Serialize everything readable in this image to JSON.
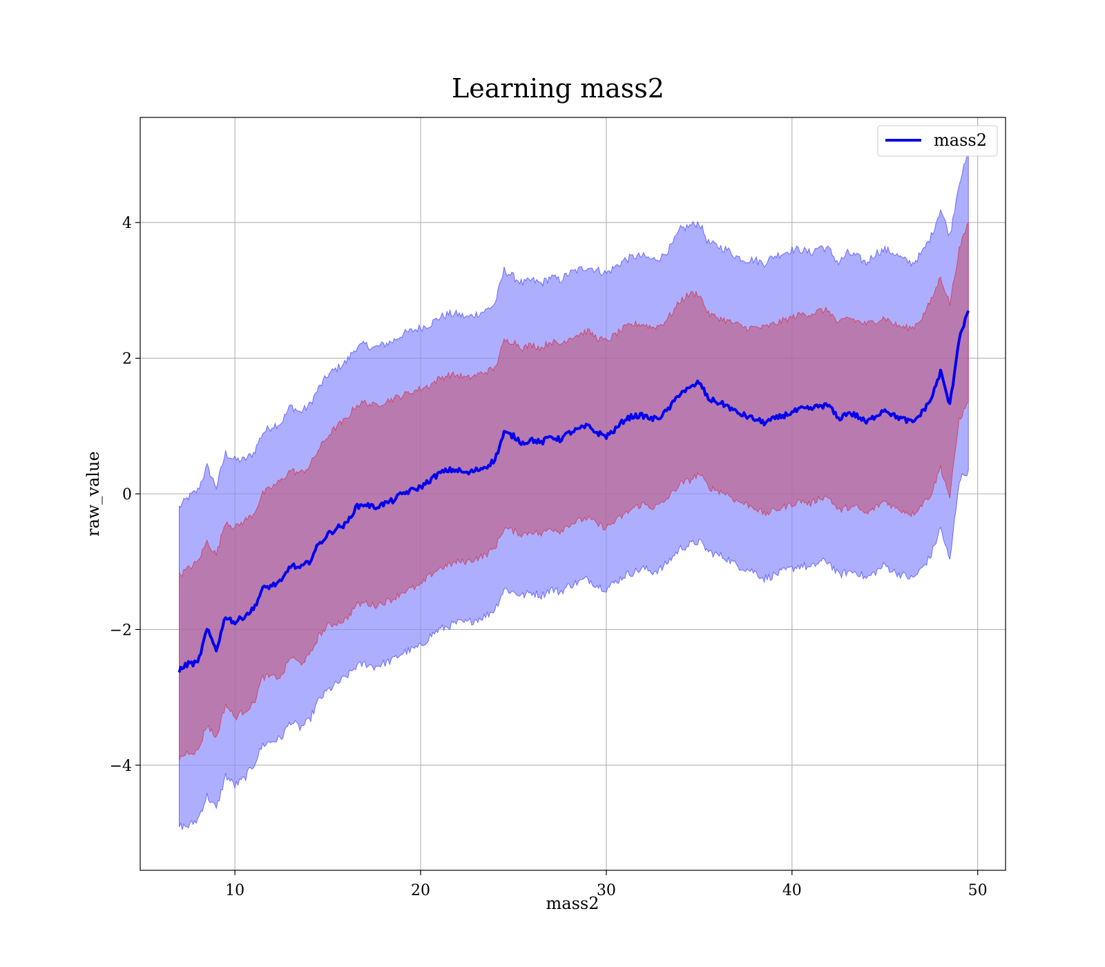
{
  "chart_data": {
    "type": "line",
    "title": "Learning mass2",
    "xlabel": "mass2",
    "ylabel": "raw_value",
    "xlim": [
      4.9,
      51.5
    ],
    "ylim": [
      -5.55,
      5.55
    ],
    "xticks": [
      10,
      20,
      30,
      40,
      50
    ],
    "yticks": [
      -4,
      -2,
      0,
      2,
      4
    ],
    "xtick_labels": [
      "10",
      "20",
      "30",
      "40",
      "50"
    ],
    "ytick_labels": [
      "−4",
      "−2",
      "0",
      "2",
      "4"
    ],
    "grid": true,
    "legend": {
      "placement": "top-right",
      "entries": [
        "mass2"
      ]
    },
    "colors": {
      "line": "#0000ee",
      "band_outer": "#8c8cff",
      "band_inner": "#c0587a"
    },
    "series": [
      {
        "name": "mass2",
        "role": "mean",
        "x": [
          7.0,
          7.5,
          8.0,
          8.5,
          9.0,
          9.5,
          10.0,
          10.5,
          11.0,
          11.5,
          12.0,
          12.5,
          13.0,
          13.5,
          14.0,
          14.5,
          15.0,
          15.5,
          16.0,
          16.5,
          17.0,
          17.5,
          18.0,
          18.5,
          19.0,
          19.5,
          20.0,
          20.5,
          21.0,
          21.5,
          22.0,
          22.5,
          23.0,
          23.5,
          24.0,
          24.5,
          25.0,
          25.5,
          26.0,
          26.5,
          27.0,
          27.5,
          28.0,
          28.5,
          29.0,
          29.5,
          30.0,
          30.5,
          31.0,
          31.5,
          32.0,
          32.5,
          33.0,
          33.5,
          34.0,
          34.5,
          35.0,
          35.5,
          36.0,
          36.5,
          37.0,
          37.5,
          38.0,
          38.5,
          39.0,
          39.5,
          40.0,
          40.5,
          41.0,
          41.5,
          42.0,
          42.5,
          43.0,
          43.5,
          44.0,
          44.5,
          45.0,
          45.5,
          46.0,
          46.5,
          47.0,
          47.5,
          48.0,
          48.5,
          49.0,
          49.5
        ],
        "y": [
          -2.6,
          -2.5,
          -2.5,
          -2.0,
          -2.3,
          -1.8,
          -1.9,
          -1.8,
          -1.7,
          -1.4,
          -1.35,
          -1.3,
          -1.05,
          -1.1,
          -1.0,
          -0.75,
          -0.6,
          -0.5,
          -0.45,
          -0.2,
          -0.15,
          -0.2,
          -0.15,
          -0.1,
          0.0,
          0.05,
          0.1,
          0.2,
          0.3,
          0.35,
          0.35,
          0.3,
          0.35,
          0.4,
          0.5,
          0.9,
          0.85,
          0.75,
          0.8,
          0.75,
          0.85,
          0.8,
          0.9,
          0.95,
          1.0,
          0.9,
          0.85,
          0.95,
          1.1,
          1.15,
          1.15,
          1.1,
          1.15,
          1.3,
          1.5,
          1.55,
          1.65,
          1.4,
          1.35,
          1.3,
          1.2,
          1.15,
          1.1,
          1.05,
          1.1,
          1.15,
          1.2,
          1.25,
          1.25,
          1.3,
          1.3,
          1.1,
          1.2,
          1.15,
          1.05,
          1.15,
          1.25,
          1.15,
          1.1,
          1.05,
          1.2,
          1.4,
          1.8,
          1.3,
          2.3,
          2.7
        ]
      },
      {
        "role": "inner_band",
        "x": [
          7.0,
          7.5,
          8.0,
          8.5,
          9.0,
          9.5,
          10.0,
          10.5,
          11.0,
          11.5,
          12.0,
          12.5,
          13.0,
          13.5,
          14.0,
          14.5,
          15.0,
          15.5,
          16.0,
          16.5,
          17.0,
          17.5,
          18.0,
          18.5,
          19.0,
          19.5,
          20.0,
          20.5,
          21.0,
          21.5,
          22.0,
          22.5,
          23.0,
          23.5,
          24.0,
          24.5,
          25.0,
          25.5,
          26.0,
          26.5,
          27.0,
          27.5,
          28.0,
          28.5,
          29.0,
          29.5,
          30.0,
          30.5,
          31.0,
          31.5,
          32.0,
          32.5,
          33.0,
          33.5,
          34.0,
          34.5,
          35.0,
          35.5,
          36.0,
          36.5,
          37.0,
          37.5,
          38.0,
          38.5,
          39.0,
          39.5,
          40.0,
          40.5,
          41.0,
          41.5,
          42.0,
          42.5,
          43.0,
          43.5,
          44.0,
          44.5,
          45.0,
          45.5,
          46.0,
          46.5,
          47.0,
          47.5,
          48.0,
          48.5,
          49.0,
          49.5
        ],
        "upper": [
          -1.2,
          -1.1,
          -1.0,
          -0.7,
          -0.9,
          -0.4,
          -0.5,
          -0.4,
          -0.3,
          0.0,
          0.1,
          0.2,
          0.35,
          0.3,
          0.4,
          0.65,
          0.85,
          1.0,
          1.1,
          1.3,
          1.35,
          1.3,
          1.35,
          1.4,
          1.45,
          1.5,
          1.55,
          1.6,
          1.7,
          1.75,
          1.75,
          1.7,
          1.75,
          1.8,
          1.85,
          2.25,
          2.25,
          2.15,
          2.2,
          2.15,
          2.25,
          2.2,
          2.3,
          2.35,
          2.4,
          2.3,
          2.25,
          2.35,
          2.45,
          2.5,
          2.5,
          2.45,
          2.5,
          2.65,
          2.85,
          2.95,
          2.95,
          2.65,
          2.6,
          2.55,
          2.5,
          2.45,
          2.45,
          2.45,
          2.5,
          2.55,
          2.6,
          2.65,
          2.65,
          2.7,
          2.7,
          2.5,
          2.6,
          2.55,
          2.5,
          2.55,
          2.6,
          2.5,
          2.45,
          2.45,
          2.6,
          2.85,
          3.2,
          2.8,
          3.6,
          4.0
        ],
        "lower": [
          -3.9,
          -3.8,
          -3.8,
          -3.4,
          -3.6,
          -3.1,
          -3.3,
          -3.2,
          -3.1,
          -2.7,
          -2.7,
          -2.7,
          -2.4,
          -2.5,
          -2.4,
          -2.1,
          -1.95,
          -1.9,
          -1.85,
          -1.65,
          -1.6,
          -1.65,
          -1.6,
          -1.55,
          -1.45,
          -1.4,
          -1.35,
          -1.2,
          -1.1,
          -1.05,
          -1.0,
          -1.0,
          -0.95,
          -0.9,
          -0.8,
          -0.5,
          -0.55,
          -0.6,
          -0.55,
          -0.6,
          -0.5,
          -0.55,
          -0.45,
          -0.4,
          -0.35,
          -0.45,
          -0.5,
          -0.4,
          -0.3,
          -0.2,
          -0.15,
          -0.2,
          -0.15,
          0.0,
          0.15,
          0.2,
          0.3,
          0.1,
          0.05,
          0.0,
          -0.1,
          -0.15,
          -0.2,
          -0.3,
          -0.25,
          -0.2,
          -0.15,
          -0.1,
          -0.15,
          -0.05,
          -0.05,
          -0.25,
          -0.2,
          -0.2,
          -0.3,
          -0.2,
          -0.1,
          -0.2,
          -0.25,
          -0.3,
          -0.15,
          0.0,
          0.4,
          -0.05,
          1.1,
          1.35
        ]
      },
      {
        "role": "outer_band",
        "x": [
          7.0,
          7.5,
          8.0,
          8.5,
          9.0,
          9.5,
          10.0,
          10.5,
          11.0,
          11.5,
          12.0,
          12.5,
          13.0,
          13.5,
          14.0,
          14.5,
          15.0,
          15.5,
          16.0,
          16.5,
          17.0,
          17.5,
          18.0,
          18.5,
          19.0,
          19.5,
          20.0,
          20.5,
          21.0,
          21.5,
          22.0,
          22.5,
          23.0,
          23.5,
          24.0,
          24.5,
          25.0,
          25.5,
          26.0,
          26.5,
          27.0,
          27.5,
          28.0,
          28.5,
          29.0,
          29.5,
          30.0,
          30.5,
          31.0,
          31.5,
          32.0,
          32.5,
          33.0,
          33.5,
          34.0,
          34.5,
          35.0,
          35.5,
          36.0,
          36.5,
          37.0,
          37.5,
          38.0,
          38.5,
          39.0,
          39.5,
          40.0,
          40.5,
          41.0,
          41.5,
          42.0,
          42.5,
          43.0,
          43.5,
          44.0,
          44.5,
          45.0,
          45.5,
          46.0,
          46.5,
          47.0,
          47.5,
          48.0,
          48.5,
          49.0,
          49.5
        ],
        "upper": [
          -0.2,
          -0.05,
          0.05,
          0.4,
          0.1,
          0.6,
          0.5,
          0.5,
          0.6,
          0.9,
          1.0,
          1.05,
          1.3,
          1.2,
          1.3,
          1.55,
          1.75,
          1.85,
          1.95,
          2.15,
          2.2,
          2.15,
          2.2,
          2.25,
          2.35,
          2.4,
          2.45,
          2.5,
          2.6,
          2.65,
          2.65,
          2.6,
          2.65,
          2.7,
          2.8,
          3.3,
          3.2,
          3.1,
          3.15,
          3.1,
          3.2,
          3.15,
          3.25,
          3.3,
          3.35,
          3.3,
          3.25,
          3.35,
          3.45,
          3.5,
          3.5,
          3.45,
          3.5,
          3.65,
          3.9,
          3.95,
          4.0,
          3.7,
          3.65,
          3.6,
          3.5,
          3.45,
          3.45,
          3.4,
          3.5,
          3.55,
          3.6,
          3.6,
          3.55,
          3.65,
          3.6,
          3.4,
          3.55,
          3.5,
          3.4,
          3.55,
          3.6,
          3.55,
          3.45,
          3.4,
          3.55,
          3.8,
          4.2,
          3.8,
          4.6,
          5.0
        ],
        "lower": [
          -4.9,
          -4.9,
          -4.8,
          -4.45,
          -4.65,
          -4.15,
          -4.3,
          -4.2,
          -4.0,
          -3.7,
          -3.65,
          -3.6,
          -3.35,
          -3.45,
          -3.35,
          -3.05,
          -2.9,
          -2.8,
          -2.7,
          -2.55,
          -2.5,
          -2.55,
          -2.5,
          -2.45,
          -2.35,
          -2.3,
          -2.25,
          -2.1,
          -2.0,
          -1.95,
          -1.9,
          -1.9,
          -1.85,
          -1.8,
          -1.7,
          -1.4,
          -1.45,
          -1.5,
          -1.45,
          -1.5,
          -1.4,
          -1.45,
          -1.35,
          -1.3,
          -1.25,
          -1.35,
          -1.4,
          -1.3,
          -1.2,
          -1.15,
          -1.1,
          -1.15,
          -1.1,
          -0.95,
          -0.8,
          -0.75,
          -0.7,
          -0.85,
          -0.9,
          -0.95,
          -1.05,
          -1.1,
          -1.15,
          -1.25,
          -1.2,
          -1.15,
          -1.1,
          -1.05,
          -1.1,
          -1.0,
          -1.0,
          -1.2,
          -1.15,
          -1.15,
          -1.25,
          -1.15,
          -1.05,
          -1.15,
          -1.2,
          -1.25,
          -1.1,
          -0.9,
          -0.5,
          -1.0,
          0.2,
          0.35
        ]
      }
    ]
  }
}
